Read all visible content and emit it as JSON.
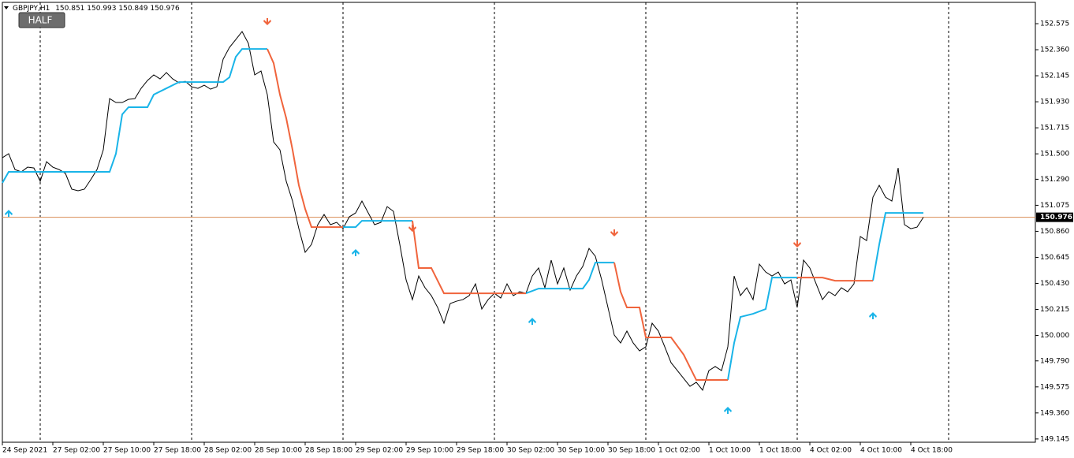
{
  "chart_data": {
    "type": "line",
    "title": "GBPJPY,H1",
    "ohlc": [
      150.851,
      150.993,
      150.849,
      150.976
    ],
    "button": "HALF",
    "xlim": [
      0,
      163.75
    ],
    "ylim": [
      149.118,
      152.751
    ],
    "xticks": [
      {
        "value": 0,
        "label": "24 Sep 2021"
      },
      {
        "value": 8,
        "label": "27 Sep 02:00"
      },
      {
        "value": 16,
        "label": "27 Sep 10:00"
      },
      {
        "value": 24,
        "label": "27 Sep 18:00"
      },
      {
        "value": 32,
        "label": "28 Sep 02:00"
      },
      {
        "value": 40,
        "label": "28 Sep 10:00"
      },
      {
        "value": 48,
        "label": "28 Sep 18:00"
      },
      {
        "value": 56,
        "label": "29 Sep 02:00"
      },
      {
        "value": 64,
        "label": "29 Sep 10:00"
      },
      {
        "value": 72,
        "label": "29 Sep 18:00"
      },
      {
        "value": 80,
        "label": "30 Sep 02:00"
      },
      {
        "value": 88,
        "label": "30 Sep 10:00"
      },
      {
        "value": 96,
        "label": "30 Sep 18:00"
      },
      {
        "value": 104,
        "label": "1 Oct 02:00"
      },
      {
        "value": 112,
        "label": "1 Oct 10:00"
      },
      {
        "value": 120,
        "label": "1 Oct 18:00"
      },
      {
        "value": 128,
        "label": "4 Oct 02:00"
      },
      {
        "value": 136,
        "label": "4 Oct 10:00"
      },
      {
        "value": 144,
        "label": "4 Oct 18:00"
      }
    ],
    "yticks": [
      {
        "value": 152.575,
        "label": "152.575"
      },
      {
        "value": 152.36,
        "label": "152.360"
      },
      {
        "value": 152.145,
        "label": "152.145"
      },
      {
        "value": 151.93,
        "label": "151.930"
      },
      {
        "value": 151.715,
        "label": "151.715"
      },
      {
        "value": 151.5,
        "label": "151.500"
      },
      {
        "value": 151.29,
        "label": "151.290"
      },
      {
        "value": 151.075,
        "label": "151.075"
      },
      {
        "value": 150.86,
        "label": "150.860"
      },
      {
        "value": 150.645,
        "label": "150.645"
      },
      {
        "value": 150.43,
        "label": "150.430"
      },
      {
        "value": 150.215,
        "label": "150.215"
      },
      {
        "value": 150.0,
        "label": "150.000"
      },
      {
        "value": 149.79,
        "label": "149.790"
      },
      {
        "value": 149.575,
        "label": "149.575"
      },
      {
        "value": 149.36,
        "label": "149.360"
      },
      {
        "value": 149.145,
        "label": "149.145"
      }
    ],
    "close": {
      "color": "#000000",
      "values": [
        151.468,
        151.501,
        151.37,
        151.351,
        151.39,
        151.383,
        151.273,
        151.435,
        151.39,
        151.37,
        151.338,
        151.208,
        151.195,
        151.208,
        151.286,
        151.37,
        151.533,
        151.956,
        151.924,
        151.924,
        151.95,
        151.956,
        152.041,
        152.106,
        152.152,
        152.119,
        152.171,
        152.119,
        152.086,
        152.099,
        152.054,
        152.041,
        152.067,
        152.034,
        152.054,
        152.282,
        152.379,
        152.444,
        152.51,
        152.412,
        152.152,
        152.184,
        151.989,
        151.598,
        151.533,
        151.273,
        151.11,
        150.882,
        150.687,
        150.752,
        150.915,
        150.999,
        150.915,
        150.934,
        150.882,
        150.98,
        151.012,
        151.11,
        151.012,
        150.915,
        150.934,
        151.064,
        151.025,
        150.752,
        150.459,
        150.296,
        150.491,
        150.394,
        150.329,
        150.231,
        150.101,
        150.264,
        150.283,
        150.296,
        150.329,
        150.426,
        150.218,
        150.296,
        150.348,
        150.309,
        150.426,
        150.329,
        150.361,
        150.348,
        150.491,
        150.557,
        150.394,
        150.622,
        150.426,
        150.557,
        150.374,
        150.491,
        150.57,
        150.719,
        150.654,
        150.459,
        150.231,
        150.003,
        149.938,
        150.036,
        149.938,
        149.873,
        149.906,
        150.101,
        150.036,
        149.906,
        149.775,
        149.71,
        149.645,
        149.58,
        149.613,
        149.548,
        149.71,
        149.743,
        149.71,
        149.906,
        150.491,
        150.329,
        150.394,
        150.296,
        150.589,
        150.524,
        150.491,
        150.524,
        150.426,
        150.459,
        150.231,
        150.622,
        150.557,
        150.426,
        150.296,
        150.361,
        150.329,
        150.394,
        150.361,
        150.426,
        150.817,
        150.784,
        151.142,
        151.24,
        151.142,
        151.11,
        151.383,
        150.915,
        150.882,
        150.895,
        150.976
      ]
    },
    "up": {
      "color": "#19b4e8",
      "x": [
        0,
        1,
        17,
        18,
        19,
        20,
        23,
        24,
        26,
        28,
        35,
        36,
        37,
        38,
        42,
        null,
        54,
        56,
        57,
        65,
        null,
        83,
        85,
        92,
        93,
        94,
        97,
        null,
        115,
        116,
        117,
        119,
        121,
        122,
        126,
        null,
        138,
        139,
        140,
        146
      ],
      "values": [
        151.26,
        151.351,
        151.351,
        151.501,
        151.826,
        151.885,
        151.885,
        151.989,
        152.041,
        152.093,
        152.093,
        152.132,
        152.301,
        152.366,
        152.366,
        null,
        150.895,
        150.895,
        150.947,
        150.947,
        null,
        150.348,
        150.387,
        150.387,
        150.459,
        150.602,
        150.602,
        null,
        149.632,
        149.938,
        150.153,
        150.179,
        150.218,
        150.478,
        150.478,
        null,
        150.452,
        150.752,
        151.012,
        151.012
      ]
    },
    "down": {
      "color": "#f0643c",
      "x": [
        42,
        43,
        44,
        45,
        46,
        47,
        48,
        49,
        54,
        null,
        65,
        66,
        68,
        70,
        83,
        null,
        97,
        98,
        99,
        101,
        102,
        106,
        108,
        110,
        115,
        null,
        126,
        130,
        132,
        138
      ],
      "values": [
        152.366,
        152.249,
        151.989,
        151.794,
        151.533,
        151.24,
        151.045,
        150.895,
        150.895,
        null,
        150.947,
        150.557,
        150.557,
        150.348,
        150.348,
        null,
        150.602,
        150.361,
        150.231,
        150.231,
        149.984,
        149.984,
        149.841,
        149.632,
        149.632,
        null,
        150.478,
        150.478,
        150.452,
        150.452
      ]
    },
    "up_arrows": {
      "color": "#19b4e8",
      "x": [
        1,
        56,
        84,
        115,
        138
      ],
      "values": [
        151.012,
        150.687,
        150.12,
        149.385,
        150.166
      ]
    },
    "down_arrows": {
      "color": "#f0643c",
      "x": [
        42,
        65,
        97,
        126
      ],
      "values": [
        152.588,
        150.882,
        150.843,
        150.752
      ]
    },
    "price_line": {
      "value": 150.976,
      "color": "#d98c55"
    }
  }
}
